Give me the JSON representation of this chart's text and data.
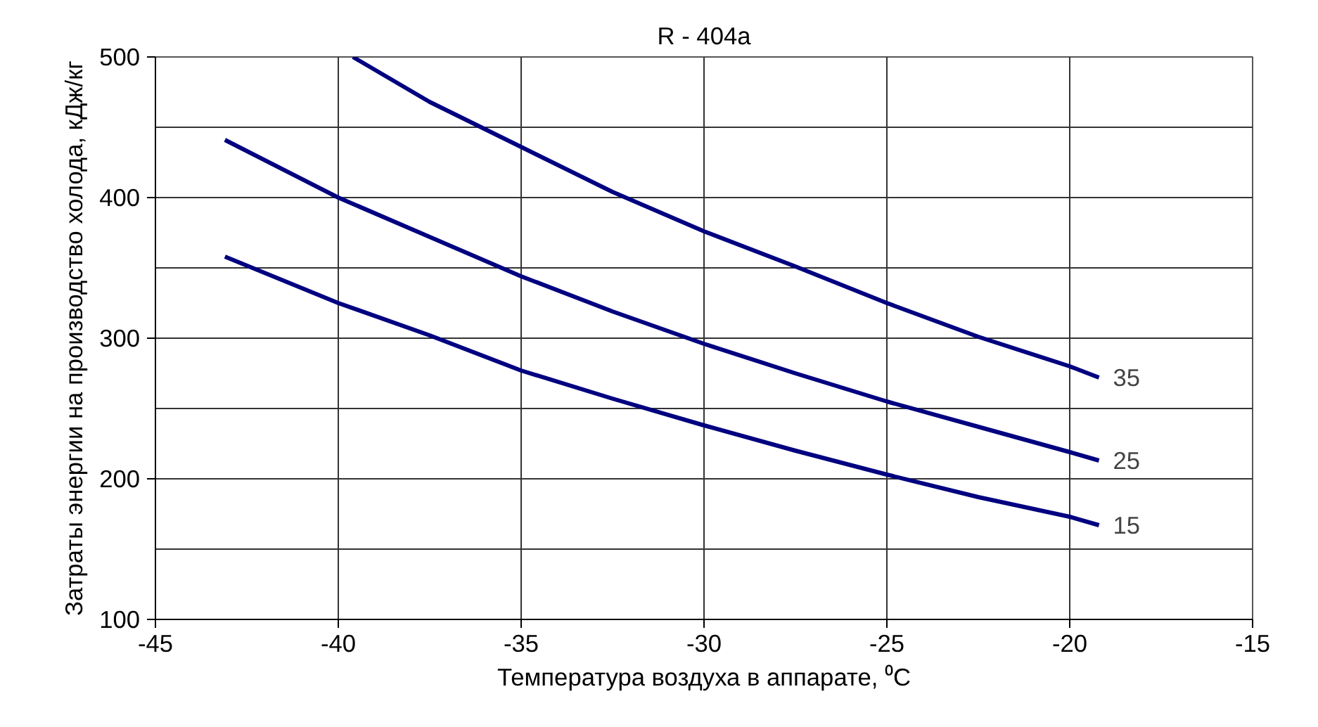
{
  "chart_data": {
    "type": "line",
    "title": "R - 404a",
    "xlabel": "Температура воздуха в аппарате, ⁰C",
    "ylabel": "Затраты энергии на производство холода, кДж/кг",
    "xlim": [
      -45,
      -15
    ],
    "xticks": [
      -45,
      -40,
      -35,
      -30,
      -25,
      -20,
      -15
    ],
    "ylim": [
      100,
      500
    ],
    "yticks": [
      100,
      {
        "value": 150,
        "label": null
      },
      200,
      {
        "value": 250,
        "label": null
      },
      300,
      {
        "value": 350,
        "label": null
      },
      400,
      {
        "value": 450,
        "label": null
      },
      500
    ],
    "grid": true,
    "legend": false,
    "marker": "none",
    "line_style": "solid",
    "series": [
      {
        "name": "35",
        "color": "#000080",
        "x": [
          -39.6,
          -37.5,
          -35,
          -32.5,
          -30,
          -27.5,
          -25,
          -22.5,
          -20,
          -19.2
        ],
        "values": [
          500,
          468,
          436,
          404,
          376,
          351,
          325,
          301,
          280,
          272
        ]
      },
      {
        "name": "25",
        "color": "#000080",
        "x": [
          -43.1,
          -40,
          -37.5,
          -35,
          -32.5,
          -30,
          -27.5,
          -25,
          -22.5,
          -20,
          -19.2
        ],
        "values": [
          441,
          400,
          372,
          344,
          319,
          296,
          275,
          255,
          237,
          219,
          213
        ]
      },
      {
        "name": "15",
        "color": "#000080",
        "x": [
          -43.1,
          -40,
          -37.5,
          -35,
          -32.5,
          -30,
          -27.5,
          -25,
          -22.5,
          -20,
          -19.2
        ],
        "values": [
          358,
          325,
          302,
          277,
          257,
          238,
          220,
          203,
          187,
          173,
          167
        ]
      }
    ]
  }
}
